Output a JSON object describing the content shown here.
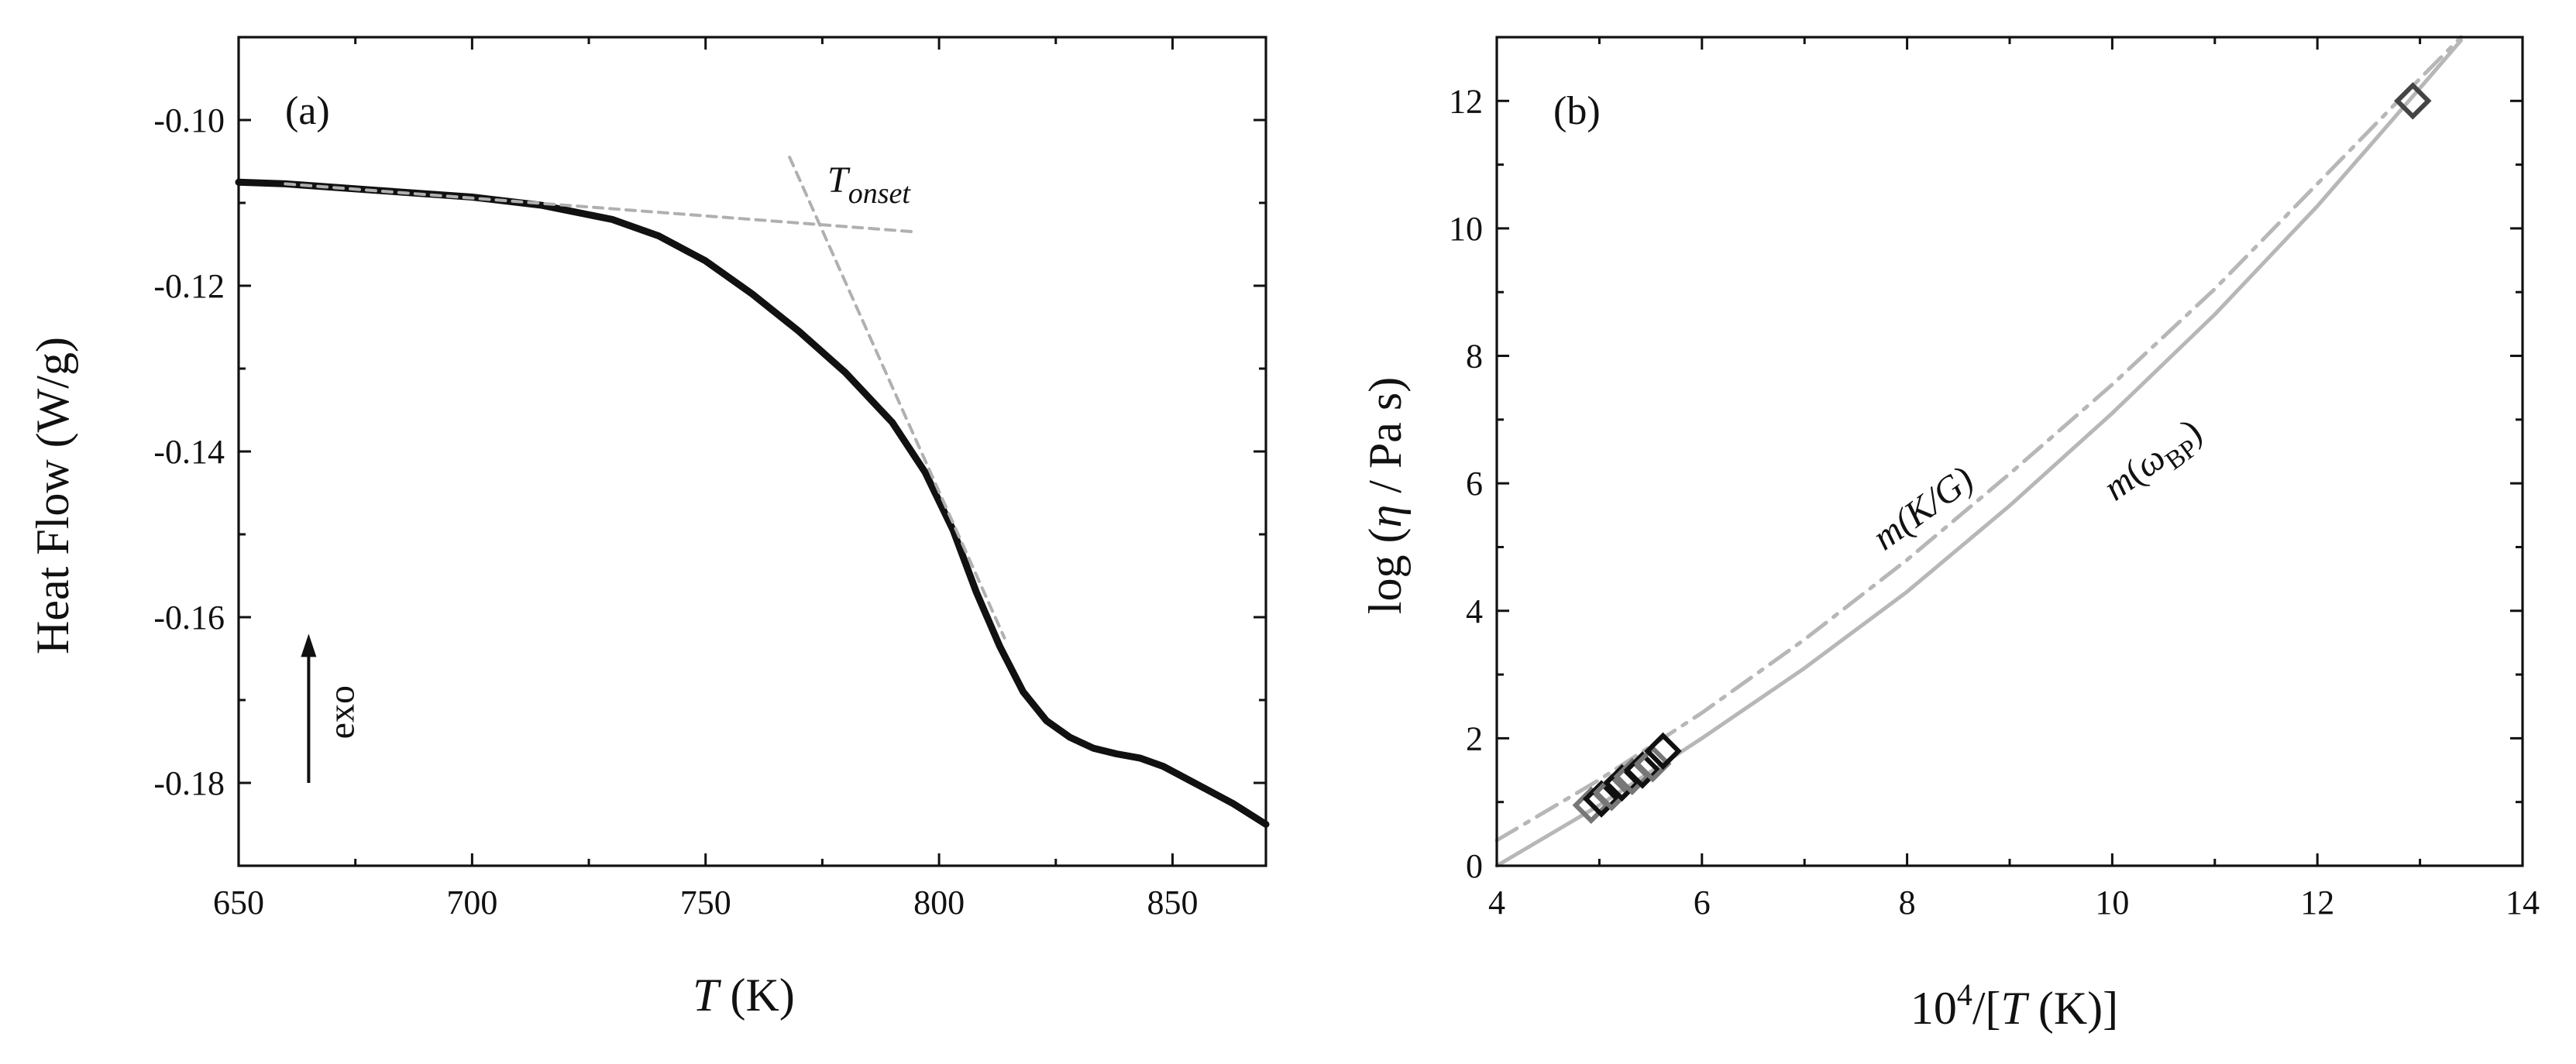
{
  "chart_data": [
    {
      "type": "line",
      "panel": "(a)",
      "xlabel_var": "T",
      "xlabel_unit": " (K)",
      "ylabel": "Heat Flow (W/g)",
      "xlim": [
        650,
        870
      ],
      "ylim": [
        -0.19,
        -0.09
      ],
      "xticks": [
        650,
        700,
        750,
        800,
        850
      ],
      "xtick_labels": [
        "650",
        "700",
        "750",
        "800",
        "850"
      ],
      "yticks": [
        -0.1,
        -0.12,
        -0.14,
        -0.16,
        -0.18
      ],
      "ytick_labels": [
        "-0.10",
        "-0.12",
        "-0.14",
        "-0.16",
        "-0.18"
      ],
      "annotations": {
        "onset_base": "T",
        "onset_sub": "onset",
        "exo": "exo"
      },
      "exo_arrow": {
        "x": 665,
        "y_from": -0.18,
        "y_to": -0.162
      },
      "series": [
        {
          "name": "DSC heat flow",
          "x": [
            650,
            660,
            680,
            700,
            715,
            730,
            740,
            750,
            760,
            770,
            780,
            790,
            797,
            803,
            808,
            813,
            818,
            823,
            828,
            833,
            838,
            843,
            848,
            853,
            858,
            863,
            870
          ],
          "y": [
            -0.1075,
            -0.1077,
            -0.1085,
            -0.1093,
            -0.1103,
            -0.112,
            -0.114,
            -0.117,
            -0.121,
            -0.1255,
            -0.1305,
            -0.1365,
            -0.1425,
            -0.1495,
            -0.157,
            -0.1635,
            -0.169,
            -0.1725,
            -0.1745,
            -0.1758,
            -0.1765,
            -0.177,
            -0.178,
            -0.1795,
            -0.181,
            -0.1825,
            -0.185
          ]
        },
        {
          "name": "baseline tangent",
          "x": [
            660,
            795
          ],
          "y": [
            -0.1077,
            -0.1135
          ]
        },
        {
          "name": "steepest tangent",
          "x": [
            768,
            814
          ],
          "y": [
            -0.1045,
            -0.1625
          ]
        }
      ]
    },
    {
      "type": "line",
      "panel": "(b)",
      "xlabel_base": "10",
      "xlabel_sup": "4",
      "xlabel_rest1": "/[",
      "xlabel_var": "T",
      "xlabel_rest2": " (K)]",
      "ylabel_pre": "log (",
      "ylabel_eta": "η",
      "ylabel_post": " / Pa s)",
      "xlim": [
        4,
        14
      ],
      "ylim": [
        0,
        13
      ],
      "xticks": [
        4,
        6,
        8,
        10,
        12,
        14
      ],
      "xtick_labels": [
        "4",
        "6",
        "8",
        "10",
        "12",
        "14"
      ],
      "yticks": [
        0,
        2,
        4,
        6,
        8,
        10,
        12
      ],
      "ytick_labels": [
        "0",
        "2",
        "4",
        "6",
        "8",
        "10",
        "12"
      ],
      "annotations": {
        "mKG_m": "m",
        "mKG_rest": "(K/G)",
        "mBP_m": "m",
        "mBP_paren": "(",
        "mBP_omega": "ω",
        "mBP_sub": "BP",
        "mBP_close": ")"
      },
      "series": [
        {
          "name": "m(ω_BP)",
          "style": "solid",
          "x": [
            4.0,
            5.0,
            6.0,
            7.0,
            8.0,
            9.0,
            10.0,
            11.0,
            12.0,
            13.0,
            13.4
          ],
          "y": [
            0.0,
            0.95,
            2.0,
            3.1,
            4.3,
            5.65,
            7.1,
            8.65,
            10.35,
            12.2,
            12.95
          ]
        },
        {
          "name": "m(K/G)",
          "style": "dash-dot",
          "x": [
            4.0,
            5.0,
            6.0,
            7.0,
            8.0,
            9.0,
            10.0,
            11.0,
            12.0,
            13.0,
            13.4
          ],
          "y": [
            0.4,
            1.35,
            2.4,
            3.55,
            4.8,
            6.15,
            7.55,
            9.05,
            10.7,
            12.35,
            13.0
          ]
        },
        {
          "name": "measured data",
          "style": "markers",
          "x": [
            4.92,
            5.02,
            5.12,
            5.22,
            5.32,
            5.42,
            5.52,
            5.62,
            12.93
          ],
          "y": [
            0.95,
            1.05,
            1.15,
            1.3,
            1.4,
            1.5,
            1.6,
            1.8,
            12.0
          ]
        }
      ]
    }
  ]
}
